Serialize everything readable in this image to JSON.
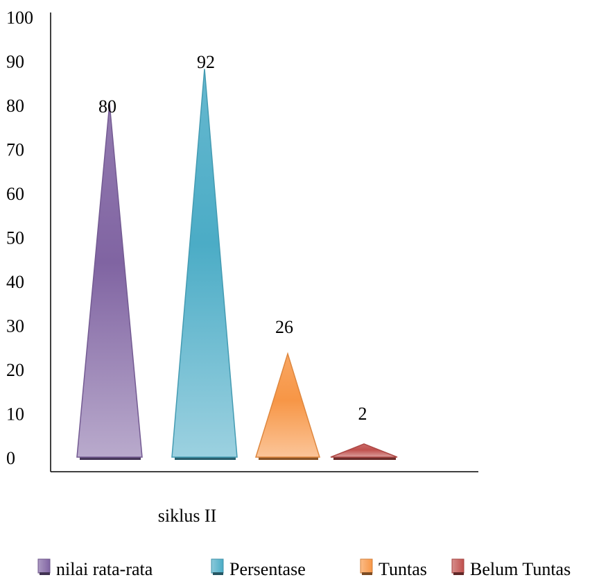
{
  "chart_data": {
    "type": "bar",
    "bar_shape": "triangle",
    "title": "",
    "xlabel": "",
    "ylabel": "",
    "categories": [
      "siklus II"
    ],
    "ylim": [
      0,
      100
    ],
    "yticks": [
      0,
      10,
      20,
      30,
      40,
      50,
      60,
      70,
      80,
      90,
      100
    ],
    "grid": false,
    "legend_position": "bottom",
    "series": [
      {
        "name": "nilai rata-rata",
        "values": [
          80
        ],
        "color": "#8064a2"
      },
      {
        "name": "Persentase",
        "values": [
          92
        ],
        "color": "#4bacc6"
      },
      {
        "name": "Tuntas",
        "values": [
          26
        ],
        "color": "#f79646"
      },
      {
        "name": "Belum Tuntas",
        "values": [
          2
        ],
        "color": "#c0504d"
      }
    ]
  }
}
